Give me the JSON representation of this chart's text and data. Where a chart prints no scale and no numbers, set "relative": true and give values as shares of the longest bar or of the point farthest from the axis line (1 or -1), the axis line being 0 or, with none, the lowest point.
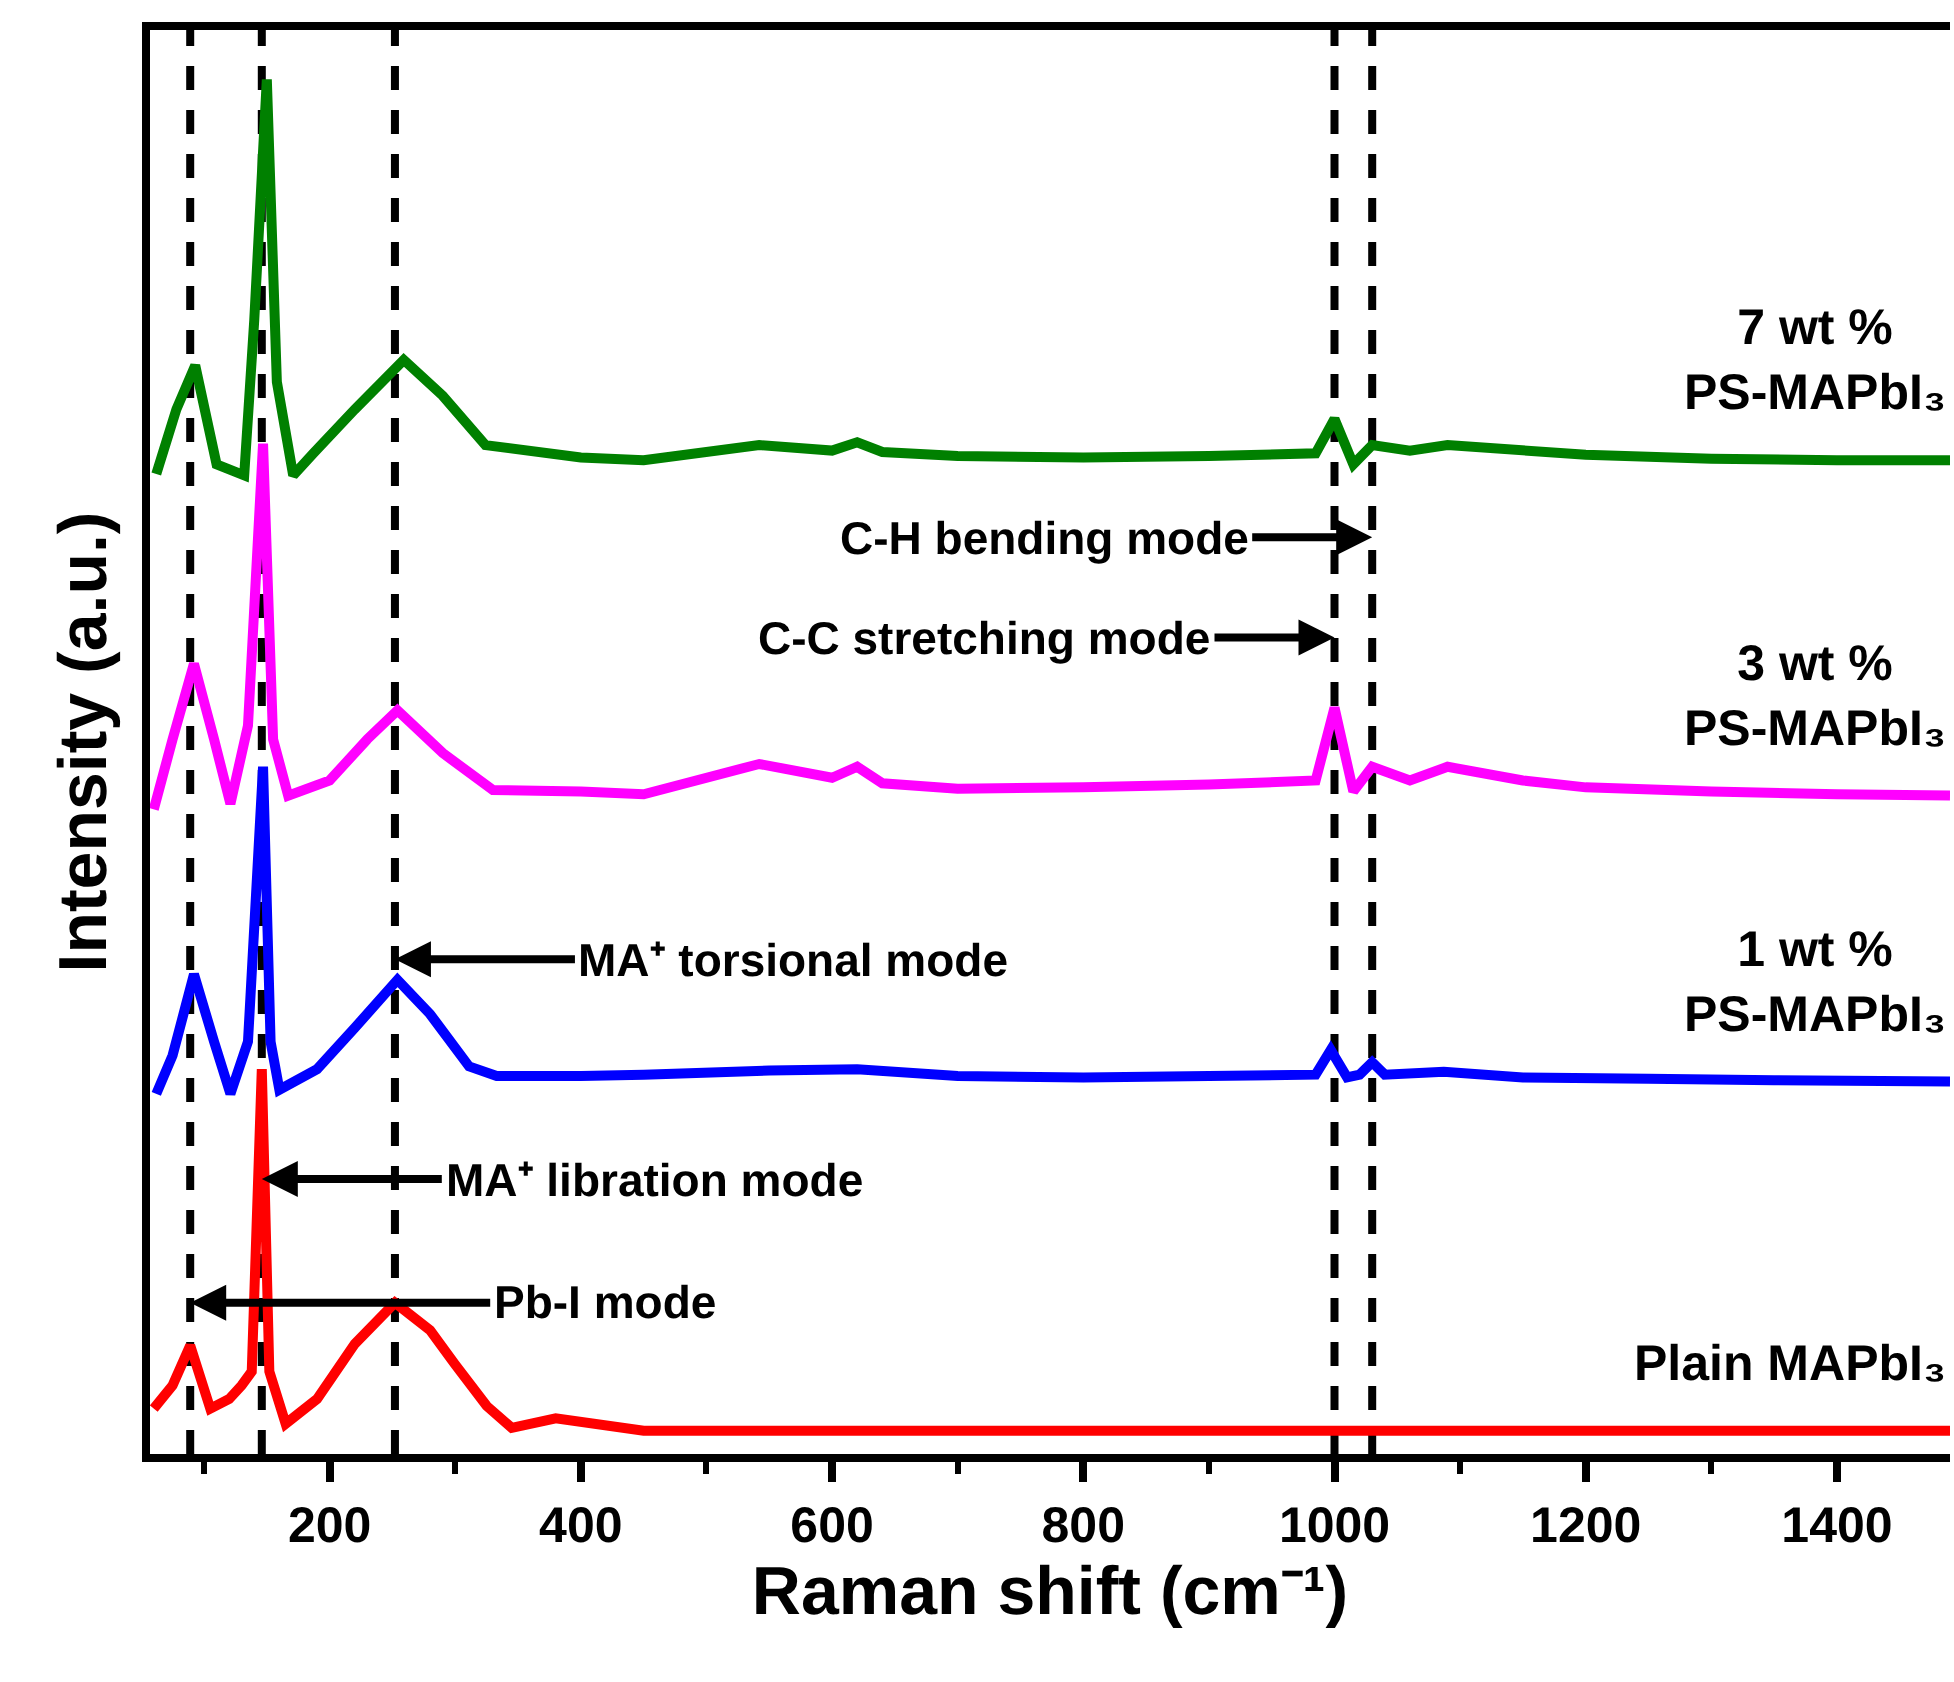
{
  "chart_data": {
    "type": "line",
    "relative": true,
    "xlabel": "Raman shift (cm⁻¹)",
    "ylabel": "Intensity (a.u.)",
    "xlim": [
      57,
      1490
    ],
    "xticks": [
      200,
      400,
      600,
      800,
      1000,
      1200,
      1400
    ],
    "legend": false,
    "grid": false,
    "marker": "none",
    "line_style": "solid",
    "series": [
      {
        "name": "Plain MAPbI₃",
        "color": "#ff0000",
        "x": [
          60,
          75,
          89,
          105,
          120,
          130,
          138,
          146,
          152,
          165,
          190,
          220,
          252,
          280,
          300,
          325,
          345,
          380,
          450,
          600,
          800,
          1000,
          1200,
          1490
        ],
        "values": [
          0.033,
          0.05,
          0.079,
          0.033,
          0.04,
          0.05,
          0.06,
          0.28,
          0.06,
          0.022,
          0.04,
          0.08,
          0.11,
          0.09,
          0.065,
          0.035,
          0.019,
          0.026,
          0.017,
          0.017,
          0.017,
          0.017,
          0.017,
          0.017
        ]
      },
      {
        "name": "1 wt %\nPS-MAPbI₃",
        "color": "#0000ff",
        "x": [
          62,
          75,
          92,
          108,
          121,
          135,
          147,
          153,
          160,
          190,
          220,
          254,
          280,
          311,
          333,
          400,
          450,
          550,
          620,
          700,
          800,
          900,
          985,
          997,
          1010,
          1020,
          1030,
          1040,
          1087,
          1150,
          1250,
          1350,
          1490
        ],
        "values": [
          0.262,
          0.29,
          0.349,
          0.3,
          0.262,
          0.3,
          0.5,
          0.3,
          0.265,
          0.28,
          0.31,
          0.345,
          0.32,
          0.282,
          0.275,
          0.275,
          0.276,
          0.279,
          0.28,
          0.275,
          0.274,
          0.275,
          0.276,
          0.294,
          0.274,
          0.276,
          0.285,
          0.276,
          0.278,
          0.274,
          0.273,
          0.272,
          0.271
        ]
      },
      {
        "name": "3 wt %\nPS-MAPbI₃",
        "color": "#ff00ff",
        "x": [
          60,
          75,
          92,
          108,
          121,
          135,
          147,
          155,
          167,
          200,
          230,
          254,
          290,
          330,
          400,
          450,
          542,
          600,
          620,
          640,
          700,
          800,
          900,
          985,
          1000,
          1015,
          1030,
          1060,
          1090,
          1150,
          1200,
          1300,
          1400,
          1490
        ],
        "values": [
          0.469,
          0.52,
          0.575,
          0.52,
          0.473,
          0.53,
          0.735,
          0.52,
          0.479,
          0.49,
          0.52,
          0.541,
          0.51,
          0.483,
          0.482,
          0.48,
          0.502,
          0.492,
          0.5,
          0.488,
          0.484,
          0.485,
          0.487,
          0.49,
          0.543,
          0.482,
          0.5,
          0.49,
          0.5,
          0.49,
          0.485,
          0.482,
          0.48,
          0.479
        ]
      },
      {
        "name": "7 wt %\nPS-MAPbI₃",
        "color": "#008000",
        "x": [
          62,
          78,
          93,
          110,
          132,
          140,
          150,
          158,
          171,
          187,
          220,
          259,
          290,
          324,
          400,
          450,
          542,
          600,
          620,
          640,
          700,
          800,
          900,
          985,
          1000,
          1015,
          1030,
          1060,
          1090,
          1200,
          1300,
          1400,
          1490
        ],
        "values": [
          0.713,
          0.76,
          0.792,
          0.72,
          0.712,
          0.825,
          1.0,
          0.78,
          0.712,
          0.728,
          0.76,
          0.796,
          0.77,
          0.734,
          0.725,
          0.723,
          0.734,
          0.73,
          0.736,
          0.729,
          0.726,
          0.725,
          0.726,
          0.728,
          0.753,
          0.72,
          0.734,
          0.73,
          0.734,
          0.727,
          0.724,
          0.723,
          0.723
        ]
      }
    ],
    "ref_lines": [
      {
        "axis": "x",
        "value": 89,
        "color": "#000000",
        "line_style": "dashed"
      },
      {
        "axis": "x",
        "value": 146,
        "color": "#000000",
        "line_style": "dashed"
      },
      {
        "axis": "x",
        "value": 252,
        "color": "#000000",
        "line_style": "dashed"
      },
      {
        "axis": "x",
        "value": 1000,
        "color": "#000000",
        "line_style": "dashed"
      },
      {
        "axis": "x",
        "value": 1030,
        "color": "#000000",
        "line_style": "dashed"
      }
    ],
    "annotations": [
      {
        "text": "Pb-I mode",
        "x": 89,
        "y": 0.11
      },
      {
        "text": "MA⁺ libration mode",
        "x": 146,
        "y": 0.2
      },
      {
        "text": "MA⁺ torsional mode",
        "x": 252,
        "y": 0.36
      },
      {
        "text": "C-C stretching mode",
        "x": 1000,
        "y": 0.594
      },
      {
        "text": "C-H bending mode",
        "x": 1030,
        "y": 0.667
      }
    ]
  }
}
